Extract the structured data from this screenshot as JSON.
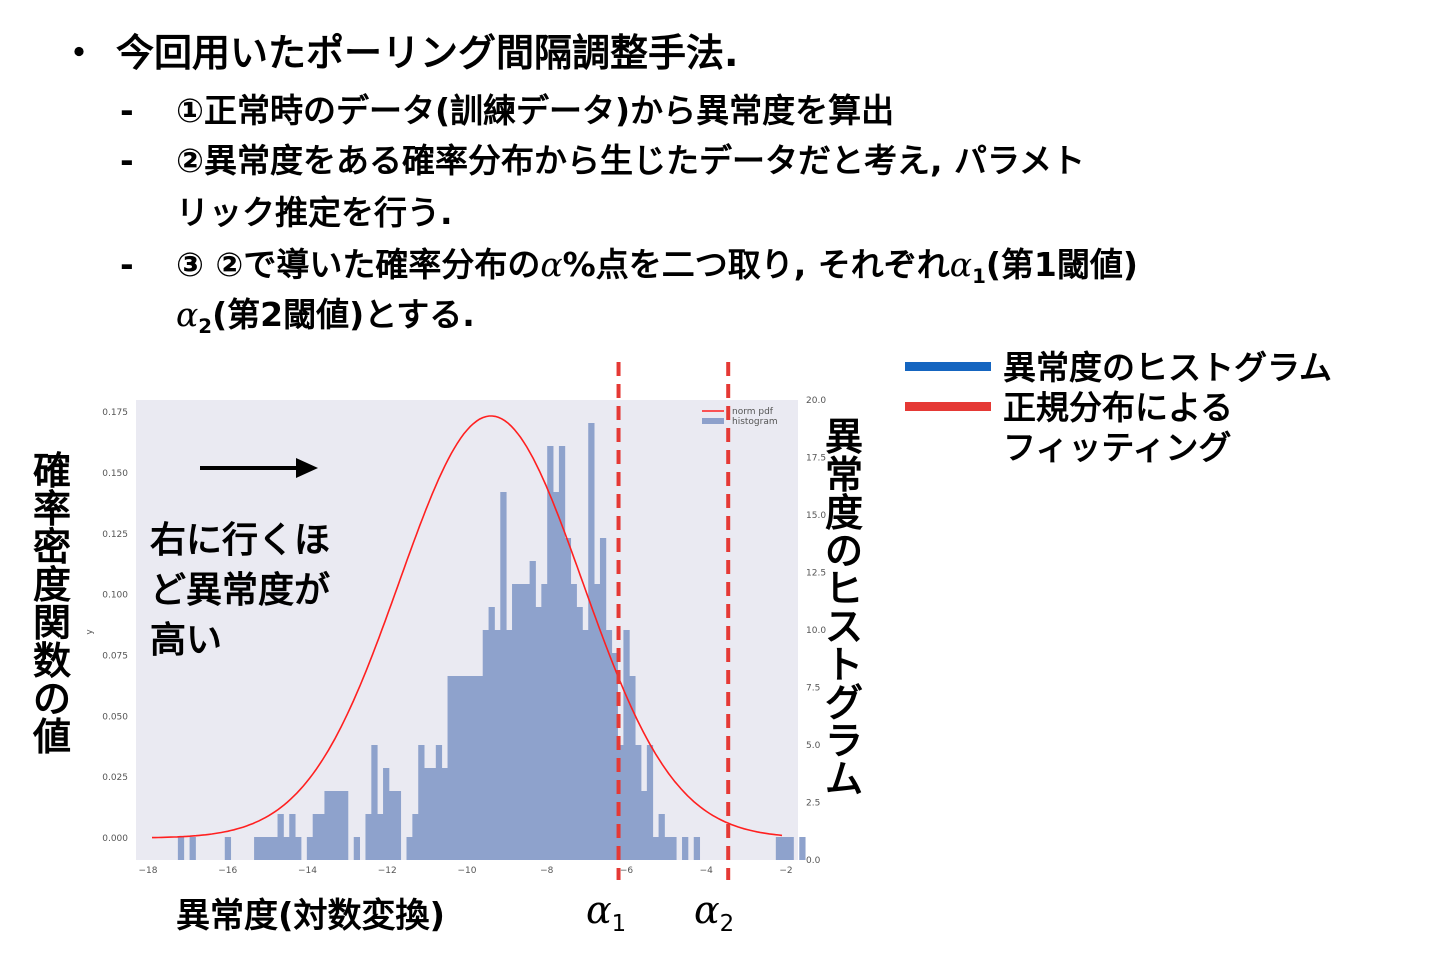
{
  "bullets": {
    "title_marker": "・",
    "title": "今回用いたポーリング間隔調整手法.",
    "dash": "-",
    "item1": "①正常時のデータ(訓練データ)から異常度を算出",
    "item2_a": "②異常度をある確率分布から生じたデータだと考え, パラメト",
    "item2_b": "リック推定を行う.",
    "item3_a_pre": "③ ②で導いた確率分布の",
    "item3_a_alpha": "α",
    "item3_a_mid": "%点を二つ取り, それぞれ",
    "item3_a_alpha1": "α",
    "item3_a_sub1": "1",
    "item3_a_post": "(第1閾値)",
    "item3_b_alpha2": "α",
    "item3_b_sub2": "2",
    "item3_b_post": "(第2閾値)とする."
  },
  "labels": {
    "left_axis_title": "確率密度関数の値",
    "right_axis_title": "異常度のヒストグラム",
    "x_axis_title": "異常度(対数変換)",
    "alpha1": "α",
    "alpha1_sub": "1",
    "alpha2": "α",
    "alpha2_sub": "2",
    "note_line1": "右に行くほ",
    "note_line2": "ど異常度が",
    "note_line3": "高い",
    "inner_ylabel": "y"
  },
  "legend": {
    "histogram_label": "異常度のヒストグラム",
    "fit_label_line1": "正規分布による",
    "fit_label_line2": "フィッティング",
    "histogram_color": "#1565c0",
    "fit_color": "#e53935"
  },
  "chart_data": {
    "type": "bar",
    "title": "",
    "xlabel": "異常度(対数変換)",
    "ylabel": "確率密度関数の値",
    "y2label": "異常度のヒストグラム",
    "xlim": [
      -18.3,
      -1.7
    ],
    "ylim": [
      -0.009,
      0.18
    ],
    "y2lim": [
      0,
      20
    ],
    "x_ticks": [
      -18,
      -16,
      -14,
      -12,
      -10,
      -8,
      -6,
      -4,
      -2
    ],
    "y_ticks": [
      0.0,
      0.025,
      0.05,
      0.075,
      0.1,
      0.125,
      0.15,
      0.175
    ],
    "y_tick_labels": [
      "0.000",
      "0.025",
      "0.050",
      "0.075",
      "0.100",
      "0.125",
      "0.150",
      "0.175"
    ],
    "y2_ticks": [
      0.0,
      2.5,
      5.0,
      7.5,
      10.0,
      12.5,
      15.0,
      17.5,
      20.0
    ],
    "y2_tick_labels": [
      "0.0",
      "2.5",
      "5.0",
      "7.5",
      "10.0",
      "12.5",
      "15.0",
      "17.5",
      "20.0"
    ],
    "inner_legend": [
      {
        "label": "norm pdf",
        "color": "#ff2020"
      },
      {
        "label": "histogram",
        "color": "#8da0cb"
      }
    ],
    "histogram": {
      "name": "histogram",
      "color": "#8ea2cc",
      "bin_edges_start": -17.25,
      "bin_width": 0.147,
      "counts": [
        1,
        0,
        1,
        0,
        0,
        0,
        0,
        0,
        1,
        0,
        0,
        0,
        0,
        1,
        1,
        1,
        1,
        2,
        1,
        2,
        1,
        0,
        1,
        2,
        2,
        3,
        3,
        3,
        3,
        0,
        1,
        0,
        2,
        5,
        2,
        4,
        3,
        3,
        0,
        1,
        2,
        5,
        4,
        4,
        5,
        4,
        8,
        8,
        8,
        8,
        8,
        8,
        10,
        11,
        10,
        16,
        10,
        12,
        12,
        12,
        13,
        11,
        12,
        18,
        16,
        18,
        14,
        12,
        11,
        10,
        19,
        12,
        14,
        10,
        9,
        5,
        10,
        8,
        5,
        3,
        5,
        1,
        2,
        1,
        1,
        0,
        1,
        0,
        1,
        0,
        0,
        0,
        0,
        0,
        0,
        0,
        0,
        0,
        0,
        0,
        0,
        0,
        1,
        1,
        1,
        0,
        1
      ]
    },
    "fit": {
      "name": "norm pdf",
      "type": "line",
      "color": "#ff2020",
      "mean": -9.4,
      "std": 2.3,
      "x_start": -17.9,
      "x_end": -2.1
    },
    "thresholds": [
      {
        "name": "α1",
        "x": -6.2,
        "color": "#e53935"
      },
      {
        "name": "α2",
        "x": -3.45,
        "color": "#e53935"
      }
    ],
    "grid": false
  }
}
